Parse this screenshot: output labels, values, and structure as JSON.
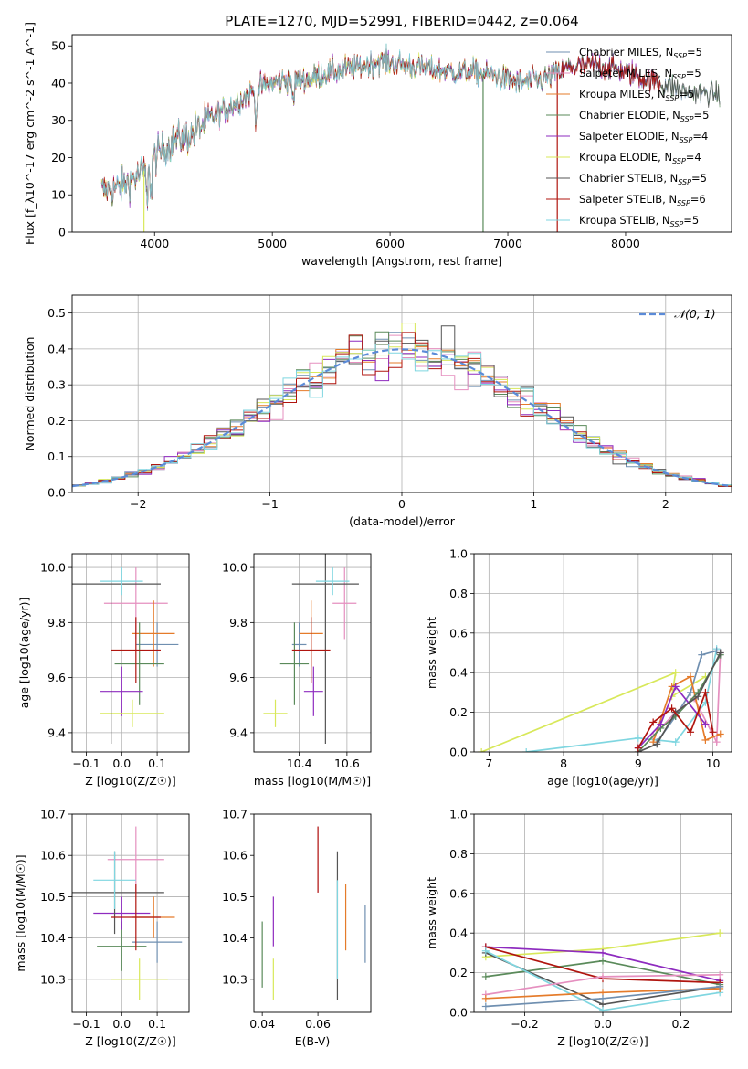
{
  "colors": {
    "Chabrier MILES": "#6f8fb0",
    "Salpeter MILES": "#e58fbf",
    "Kroupa MILES": "#e57b2a",
    "Chabrier ELODIE": "#5a8a5a",
    "Salpeter ELODIE": "#8e2bbf",
    "Kroupa ELODIE": "#d8e85a",
    "Chabrier STELIB": "#555555",
    "Salpeter STELIB": "#b0150f",
    "Kroupa STELIB": "#7fd6e0",
    "normal": "#5b8bd8"
  },
  "chart_data": [
    {
      "id": "spectrum",
      "type": "line",
      "title": "PLATE=1270, MJD=52991, FIBERID=0442, z=0.064",
      "xlabel": "wavelength [Angstrom, rest frame]",
      "ylabel": "Flux [f_λ10^-17 erg cm^-2 s^-1 A^-1]",
      "xlim": [
        3300,
        8900
      ],
      "ylim": [
        0,
        53
      ],
      "xticks": [
        4000,
        5000,
        6000,
        7000,
        8000
      ],
      "yticks": [
        0,
        10,
        20,
        30,
        40,
        50
      ],
      "legend_location": "upper right",
      "legend": [
        {
          "key": "Chabrier MILES",
          "label": "Chabrier MILES, N",
          "sub": "SSP",
          "tail": "=5"
        },
        {
          "key": "Salpeter MILES",
          "label": "Salpeter MILES, N",
          "sub": "SSP",
          "tail": "=5"
        },
        {
          "key": "Kroupa MILES",
          "label": "Kroupa MILES, N",
          "sub": "SSP",
          "tail": "=5"
        },
        {
          "key": "Chabrier ELODIE",
          "label": "Chabrier ELODIE, N",
          "sub": "SSP",
          "tail": "=5"
        },
        {
          "key": "Salpeter ELODIE",
          "label": "Salpeter ELODIE, N",
          "sub": "SSP",
          "tail": "=4"
        },
        {
          "key": "Kroupa ELODIE",
          "label": "Kroupa ELODIE, N",
          "sub": "SSP",
          "tail": "=4"
        },
        {
          "key": "Chabrier STELIB",
          "label": "Chabrier STELIB, N",
          "sub": "SSP",
          "tail": "=5"
        },
        {
          "key": "Salpeter STELIB",
          "label": "Salpeter STELIB, N",
          "sub": "SSP",
          "tail": "=6"
        },
        {
          "key": "Kroupa STELIB",
          "label": "Kroupa STELIB, N",
          "sub": "SSP",
          "tail": "=5"
        }
      ],
      "continuum": [
        [
          3550,
          11
        ],
        [
          3700,
          12
        ],
        [
          3800,
          14
        ],
        [
          3900,
          16
        ],
        [
          4000,
          20
        ],
        [
          4100,
          23
        ],
        [
          4200,
          25
        ],
        [
          4300,
          26
        ],
        [
          4500,
          31
        ],
        [
          4700,
          35
        ],
        [
          4900,
          39
        ],
        [
          5100,
          41
        ],
        [
          5300,
          41
        ],
        [
          5500,
          43
        ],
        [
          5700,
          44
        ],
        [
          5900,
          46
        ],
        [
          6100,
          45
        ],
        [
          6300,
          44
        ],
        [
          6500,
          43
        ],
        [
          6700,
          43
        ],
        [
          6900,
          42
        ],
        [
          7100,
          40
        ],
        [
          7300,
          41
        ],
        [
          7500,
          44
        ],
        [
          7700,
          45
        ],
        [
          7900,
          44
        ],
        [
          8100,
          42
        ],
        [
          8300,
          40
        ],
        [
          8500,
          38
        ],
        [
          8700,
          37
        ]
      ],
      "model_ranges": [
        [
          3550,
          7440
        ],
        [
          3550,
          8300
        ],
        [
          3550,
          8800
        ]
      ],
      "dropouts": [
        [
          3910,
          "Kroupa ELODIE"
        ],
        [
          6790,
          "Chabrier ELODIE"
        ],
        [
          7420,
          "Salpeter STELIB"
        ]
      ]
    },
    {
      "id": "residual-histogram",
      "type": "line",
      "xlabel": "(data-model)/error",
      "ylabel": "Normed distribution",
      "xlim": [
        -2.5,
        2.5
      ],
      "ylim": [
        0,
        0.55
      ],
      "xticks": [
        -2,
        -1,
        0,
        1,
        2
      ],
      "yticks": [
        0.0,
        0.1,
        0.2,
        0.3,
        0.4,
        0.5
      ],
      "grid": true,
      "bin_width": 0.1,
      "legend_location": "upper right",
      "legend": [
        {
          "key": "normal",
          "label": "𝒩(0, 1)"
        }
      ]
    },
    {
      "id": "age-vs-metallicity",
      "type": "scatter",
      "xlabel": "Z [log10(Z/Z☉)]",
      "ylabel": "age [log10(age/yr)]",
      "xlim": [
        -0.14,
        0.19
      ],
      "ylim": [
        9.33,
        10.05
      ],
      "xticks": [
        -0.1,
        0.0,
        0.1
      ],
      "yticks": [
        9.4,
        9.6,
        9.8,
        10.0
      ],
      "grid": true,
      "points": [
        {
          "key": "Chabrier MILES",
          "x": 0.1,
          "xerr": 0.06,
          "y": 9.72,
          "yerr": 0.08
        },
        {
          "key": "Salpeter MILES",
          "x": 0.04,
          "xerr": 0.09,
          "y": 9.87,
          "yerr": 0.13
        },
        {
          "key": "Kroupa MILES",
          "x": 0.09,
          "xerr": 0.06,
          "y": 9.76,
          "yerr": 0.12
        },
        {
          "key": "Chabrier ELODIE",
          "x": 0.05,
          "xerr": 0.07,
          "y": 9.65,
          "yerr": 0.15
        },
        {
          "key": "Salpeter ELODIE",
          "x": -0.0,
          "xerr": 0.06,
          "y": 9.55,
          "yerr": 0.09
        },
        {
          "key": "Kroupa ELODIE",
          "x": 0.03,
          "xerr": 0.09,
          "y": 9.47,
          "yerr": 0.05
        },
        {
          "key": "Chabrier STELIB",
          "x": -0.03,
          "xerr": 0.14,
          "y": 9.94,
          "yerr": 0.58
        },
        {
          "key": "Salpeter STELIB",
          "x": 0.04,
          "xerr": 0.07,
          "y": 9.7,
          "yerr": 0.12
        },
        {
          "key": "Kroupa STELIB",
          "x": -0.0,
          "xerr": 0.06,
          "y": 9.95,
          "yerr": 0.05
        }
      ]
    },
    {
      "id": "age-vs-mass",
      "type": "scatter",
      "xlabel": "mass [log10(M/M☉)]",
      "ylabel": "",
      "xlim": [
        10.21,
        10.7
      ],
      "ylim": [
        9.33,
        10.05
      ],
      "xticks": [
        10.4,
        10.6
      ],
      "yticks": [
        9.4,
        9.6,
        9.8,
        10.0
      ],
      "grid": true,
      "points": [
        {
          "key": "Chabrier MILES",
          "x": 10.4,
          "xerr": 0.03,
          "y": 9.72,
          "yerr": 0.08
        },
        {
          "key": "Salpeter MILES",
          "x": 10.59,
          "xerr": 0.05,
          "y": 9.87,
          "yerr": 0.13
        },
        {
          "key": "Kroupa MILES",
          "x": 10.45,
          "xerr": 0.05,
          "y": 9.76,
          "yerr": 0.12
        },
        {
          "key": "Chabrier ELODIE",
          "x": 10.38,
          "xerr": 0.06,
          "y": 9.65,
          "yerr": 0.15
        },
        {
          "key": "Salpeter ELODIE",
          "x": 10.46,
          "xerr": 0.04,
          "y": 9.55,
          "yerr": 0.09
        },
        {
          "key": "Kroupa ELODIE",
          "x": 10.3,
          "xerr": 0.05,
          "y": 9.47,
          "yerr": 0.05
        },
        {
          "key": "Chabrier STELIB",
          "x": 10.51,
          "xerr": 0.14,
          "y": 9.94,
          "yerr": 0.58
        },
        {
          "key": "Salpeter STELIB",
          "x": 10.45,
          "xerr": 0.08,
          "y": 9.7,
          "yerr": 0.12
        },
        {
          "key": "Kroupa STELIB",
          "x": 10.54,
          "xerr": 0.07,
          "y": 9.95,
          "yerr": 0.05
        }
      ]
    },
    {
      "id": "mass-weight-vs-age",
      "type": "line",
      "xlabel": "age [log10(age/yr)]",
      "ylabel": "mass weight",
      "xlim": [
        6.8,
        10.25
      ],
      "ylim": [
        0,
        1
      ],
      "xticks": [
        7,
        8,
        9,
        10
      ],
      "yticks": [
        0.0,
        0.2,
        0.4,
        0.6,
        0.8,
        1.0
      ],
      "grid": true,
      "series": [
        {
          "key": "Kroupa ELODIE",
          "x": [
            6.9,
            9.5,
            9.45,
            9.9
          ],
          "y": [
            0.0,
            0.4,
            0.28,
            0.38
          ]
        },
        {
          "key": "Kroupa STELIB",
          "x": [
            7.5,
            9.0,
            9.5,
            9.9,
            10.05
          ],
          "y": [
            0.0,
            0.07,
            0.05,
            0.25,
            0.52
          ]
        },
        {
          "key": "Chabrier MILES",
          "x": [
            9.25,
            9.5,
            9.7,
            9.85,
            10.05
          ],
          "y": [
            0.05,
            0.18,
            0.3,
            0.49,
            0.51
          ]
        },
        {
          "key": "Salpeter MILES",
          "x": [
            9.2,
            9.5,
            9.75,
            10.05,
            10.1
          ],
          "y": [
            0.08,
            0.2,
            0.27,
            0.05,
            0.5
          ]
        },
        {
          "key": "Kroupa MILES",
          "x": [
            9.2,
            9.45,
            9.7,
            9.9,
            10.1
          ],
          "y": [
            0.05,
            0.33,
            0.38,
            0.06,
            0.09
          ]
        },
        {
          "key": "Chabrier ELODIE",
          "x": [
            9.0,
            9.3,
            9.5,
            9.8,
            10.1
          ],
          "y": [
            0.0,
            0.12,
            0.18,
            0.3,
            0.49
          ]
        },
        {
          "key": "Salpeter ELODIE",
          "x": [
            9.0,
            9.3,
            9.5,
            9.9
          ],
          "y": [
            0.02,
            0.14,
            0.33,
            0.14
          ]
        },
        {
          "key": "Chabrier STELIB",
          "x": [
            9.0,
            9.25,
            9.5,
            9.8,
            10.1
          ],
          "y": [
            0.0,
            0.04,
            0.2,
            0.28,
            0.5
          ]
        },
        {
          "key": "Salpeter STELIB",
          "x": [
            9.0,
            9.2,
            9.45,
            9.7,
            9.9,
            10.0
          ],
          "y": [
            0.02,
            0.15,
            0.22,
            0.1,
            0.3,
            0.1
          ]
        }
      ]
    },
    {
      "id": "mass-vs-metallicity",
      "type": "scatter",
      "xlabel": "Z [log10(Z/Z☉)]",
      "ylabel": "mass [log10(M/M☉)]",
      "xlim": [
        -0.14,
        0.19
      ],
      "ylim": [
        10.22,
        10.7
      ],
      "xticks": [
        -0.1,
        0.0,
        0.1
      ],
      "yticks": [
        10.3,
        10.4,
        10.5,
        10.6,
        10.7
      ],
      "grid": true,
      "points": [
        {
          "key": "Chabrier MILES",
          "x": 0.1,
          "xerr": 0.07,
          "y": 10.39,
          "yerr": 0.05
        },
        {
          "key": "Salpeter MILES",
          "x": 0.04,
          "xerr": 0.08,
          "y": 10.59,
          "yerr": 0.08
        },
        {
          "key": "Kroupa MILES",
          "x": 0.09,
          "xerr": 0.06,
          "y": 10.45,
          "yerr": 0.05
        },
        {
          "key": "Chabrier ELODIE",
          "x": 0.0,
          "xerr": 0.07,
          "y": 10.38,
          "yerr": 0.06
        },
        {
          "key": "Salpeter ELODIE",
          "x": 0.0,
          "xerr": 0.08,
          "y": 10.46,
          "yerr": 0.04
        },
        {
          "key": "Kroupa ELODIE",
          "x": 0.05,
          "xerr": 0.08,
          "y": 10.3,
          "yerr": 0.05
        },
        {
          "key": "Chabrier STELIB",
          "x": -0.02,
          "xerr": 0.14,
          "y": 10.51,
          "yerr": 0.1
        },
        {
          "key": "Salpeter STELIB",
          "x": 0.04,
          "xerr": 0.07,
          "y": 10.45,
          "yerr": 0.08
        },
        {
          "key": "Kroupa STELIB",
          "x": -0.02,
          "xerr": 0.06,
          "y": 10.54,
          "yerr": 0.07
        }
      ]
    },
    {
      "id": "mass-vs-extinction",
      "type": "scatter",
      "xlabel": "E(B-V)",
      "ylabel": "",
      "xlim": [
        0.037,
        0.079
      ],
      "ylim": [
        10.22,
        10.7
      ],
      "xticks": [
        0.04,
        0.06
      ],
      "yticks": [
        10.3,
        10.4,
        10.5,
        10.6,
        10.7
      ],
      "grid": false,
      "points": [
        {
          "key": "Chabrier MILES",
          "x": 0.077,
          "y": 10.41,
          "yerr": 0.07
        },
        {
          "key": "Salpeter MILES",
          "x": 0.06,
          "y": 10.59,
          "yerr": 0.08
        },
        {
          "key": "Kroupa MILES",
          "x": 0.07,
          "y": 10.45,
          "yerr": 0.08
        },
        {
          "key": "Chabrier ELODIE",
          "x": 0.04,
          "y": 10.36,
          "yerr": 0.08
        },
        {
          "key": "Salpeter ELODIE",
          "x": 0.044,
          "y": 10.44,
          "yerr": 0.06
        },
        {
          "key": "Kroupa ELODIE",
          "x": 0.044,
          "y": 10.3,
          "yerr": 0.05
        },
        {
          "key": "Chabrier STELIB",
          "x": 0.067,
          "y": 10.43,
          "yerr": 0.18
        },
        {
          "key": "Salpeter STELIB",
          "x": 0.06,
          "y": 10.59,
          "yerr": 0.08
        },
        {
          "key": "Kroupa STELIB",
          "x": 0.067,
          "y": 10.42,
          "yerr": 0.12
        }
      ]
    },
    {
      "id": "mass-weight-vs-metallicity",
      "type": "line",
      "xlabel": "Z [log10(Z/Z☉)]",
      "ylabel": "mass weight",
      "xlim": [
        -0.33,
        0.33
      ],
      "ylim": [
        0,
        1
      ],
      "xticks": [
        -0.2,
        0.0,
        0.2
      ],
      "yticks": [
        0.0,
        0.2,
        0.4,
        0.6,
        0.8,
        1.0
      ],
      "grid": true,
      "series": [
        {
          "key": "Kroupa ELODIE",
          "x": [
            -0.3,
            0.0,
            0.3
          ],
          "y": [
            0.28,
            0.32,
            0.4
          ]
        },
        {
          "key": "Salpeter ELODIE",
          "x": [
            -0.3,
            0.0,
            0.3
          ],
          "y": [
            0.33,
            0.3,
            0.16
          ]
        },
        {
          "key": "Chabrier ELODIE",
          "x": [
            -0.3,
            0.0,
            0.3
          ],
          "y": [
            0.18,
            0.26,
            0.14
          ]
        },
        {
          "key": "Salpeter STELIB",
          "x": [
            -0.3,
            0.0,
            0.3
          ],
          "y": [
            0.33,
            0.17,
            0.15
          ]
        },
        {
          "key": "Chabrier STELIB",
          "x": [
            -0.3,
            0.0,
            0.3
          ],
          "y": [
            0.3,
            0.04,
            0.13
          ]
        },
        {
          "key": "Kroupa STELIB",
          "x": [
            -0.3,
            0.0,
            0.3
          ],
          "y": [
            0.31,
            0.01,
            0.1
          ]
        },
        {
          "key": "Salpeter MILES",
          "x": [
            -0.3,
            0.0,
            0.3
          ],
          "y": [
            0.09,
            0.18,
            0.19
          ]
        },
        {
          "key": "Kroupa MILES",
          "x": [
            -0.3,
            0.0,
            0.3
          ],
          "y": [
            0.07,
            0.1,
            0.12
          ]
        },
        {
          "key": "Chabrier MILES",
          "x": [
            -0.3,
            0.0,
            0.3
          ],
          "y": [
            0.03,
            0.07,
            0.13
          ]
        }
      ]
    }
  ]
}
